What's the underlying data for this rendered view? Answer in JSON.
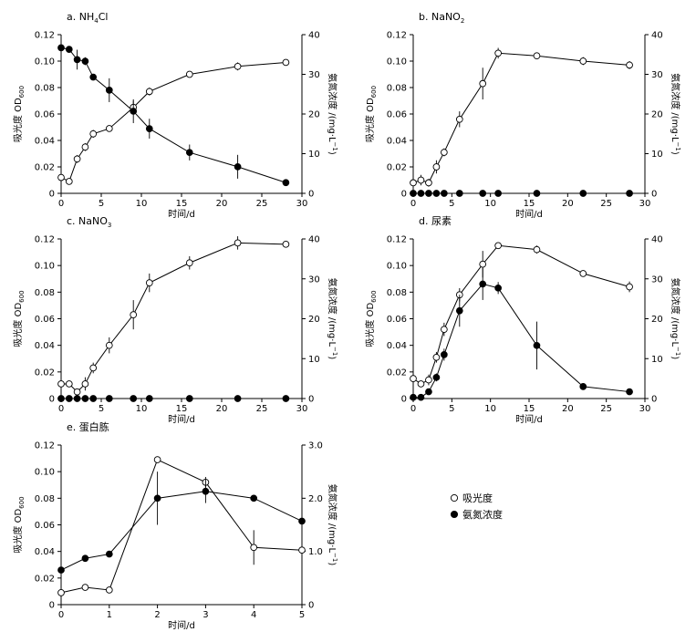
{
  "figure": {
    "legend": {
      "od_label": "吸光度",
      "ammonia_label": "氨氮浓度"
    }
  },
  "chart_data": [
    {
      "type": "line",
      "panel": "a",
      "title_parts": [
        "a. NH",
        "4",
        "Cl"
      ],
      "xlabel": "时间/d",
      "ylabel_parts": [
        "吸光度 OD",
        "600"
      ],
      "y2label_parts": [
        "氨氮浓度 /(mg·L",
        "−1",
        ")"
      ],
      "xlim": [
        0,
        30
      ],
      "ylim": [
        0,
        0.12
      ],
      "y2lim": [
        0,
        40
      ],
      "xticks": [
        "0",
        "5",
        "10",
        "15",
        "20",
        "25",
        "30"
      ],
      "yticks": [
        "0",
        "0.02",
        "0.04",
        "0.06",
        "0.08",
        "0.10",
        "0.12"
      ],
      "y2ticks": [
        "0",
        "10",
        "20",
        "30",
        "40"
      ],
      "series": [
        {
          "name": "吸光度",
          "axis": "left",
          "marker": "open",
          "x": [
            0,
            1,
            2,
            3,
            4,
            6,
            9,
            11,
            16,
            22,
            28
          ],
          "y": [
            0.012,
            0.009,
            0.026,
            0.035,
            0.045,
            0.049,
            0.065,
            0.077,
            0.09,
            0.096,
            0.099
          ],
          "err": [
            0.002,
            0.002,
            0.003,
            0.003,
            0.003,
            0.002,
            0.005,
            0.003,
            0.002,
            0.003,
            0.002
          ]
        },
        {
          "name": "氨氮浓度",
          "axis": "right",
          "marker": "filled",
          "x": [
            0,
            1,
            2,
            3,
            4,
            6,
            9,
            11,
            16,
            22,
            28
          ],
          "y": [
            36.7,
            36.3,
            33.7,
            33.3,
            29.3,
            26.0,
            20.7,
            16.3,
            10.3,
            6.7,
            2.7
          ],
          "err": [
            0.5,
            0.5,
            2.5,
            1.0,
            0.5,
            3.0,
            3.0,
            2.5,
            2.0,
            3.0,
            0.5
          ]
        }
      ]
    },
    {
      "type": "line",
      "panel": "b",
      "title_parts": [
        "b. NaNO",
        "2",
        ""
      ],
      "xlabel": "时间/d",
      "ylabel_parts": [
        "吸光度 OD",
        "600"
      ],
      "y2label_parts": [
        "氨氮浓度 /(mg·L",
        "−1",
        ")"
      ],
      "xlim": [
        0,
        30
      ],
      "ylim": [
        0,
        0.12
      ],
      "y2lim": [
        0,
        40
      ],
      "xticks": [
        "0",
        "5",
        "10",
        "15",
        "20",
        "25",
        "30"
      ],
      "yticks": [
        "0",
        "0.02",
        "0.04",
        "0.06",
        "0.08",
        "0.10",
        "0.12"
      ],
      "y2ticks": [
        "0",
        "10",
        "20",
        "30",
        "40"
      ],
      "series": [
        {
          "name": "吸光度",
          "axis": "left",
          "marker": "open",
          "x": [
            0,
            1,
            2,
            3,
            4,
            6,
            9,
            11,
            16,
            22,
            28
          ],
          "y": [
            0.008,
            0.01,
            0.008,
            0.02,
            0.031,
            0.056,
            0.083,
            0.106,
            0.104,
            0.1,
            0.097
          ],
          "err": [
            0.002,
            0.004,
            0.003,
            0.005,
            0.003,
            0.006,
            0.012,
            0.004,
            0.002,
            0.003,
            0.003
          ]
        },
        {
          "name": "氨氮浓度",
          "axis": "right",
          "marker": "filled",
          "x": [
            0,
            1,
            2,
            3,
            4,
            6,
            9,
            11,
            16,
            22,
            28
          ],
          "y": [
            0,
            0,
            0,
            0,
            0,
            0,
            0,
            0,
            0,
            0,
            0
          ],
          "err": [
            0,
            0,
            0,
            0,
            0,
            0,
            0,
            0,
            0,
            0,
            0
          ]
        }
      ]
    },
    {
      "type": "line",
      "panel": "c",
      "title_parts": [
        "c. NaNO",
        "3",
        ""
      ],
      "xlabel": "时间/d",
      "ylabel_parts": [
        "吸光度 OD",
        "600"
      ],
      "y2label_parts": [
        "氨氮浓度 /(mg·L",
        "−1",
        ")"
      ],
      "xlim": [
        0,
        30
      ],
      "ylim": [
        0,
        0.12
      ],
      "y2lim": [
        0,
        40
      ],
      "xticks": [
        "0",
        "5",
        "10",
        "15",
        "20",
        "25",
        "30"
      ],
      "yticks": [
        "0",
        "0.02",
        "0.04",
        "0.06",
        "0.08",
        "0.10",
        "0.12"
      ],
      "y2ticks": [
        "0",
        "10",
        "20",
        "30",
        "40"
      ],
      "series": [
        {
          "name": "吸光度",
          "axis": "left",
          "marker": "open",
          "x": [
            0,
            1,
            2,
            3,
            4,
            6,
            9,
            11,
            16,
            22,
            28
          ],
          "y": [
            0.011,
            0.011,
            0.005,
            0.011,
            0.023,
            0.04,
            0.063,
            0.087,
            0.102,
            0.117,
            0.116
          ],
          "err": [
            0.001,
            0.002,
            0.002,
            0.005,
            0.004,
            0.006,
            0.011,
            0.007,
            0.005,
            0.005,
            0.001
          ]
        },
        {
          "name": "氨氮浓度",
          "axis": "right",
          "marker": "filled",
          "x": [
            0,
            1,
            2,
            3,
            4,
            6,
            9,
            11,
            16,
            22,
            28
          ],
          "y": [
            0,
            0,
            0,
            0,
            0,
            0,
            0,
            0,
            0,
            0,
            0
          ],
          "err": [
            0,
            0,
            0,
            0,
            0,
            0,
            0,
            0,
            0,
            0,
            0
          ]
        }
      ]
    },
    {
      "type": "line",
      "panel": "d",
      "title_parts": [
        "d. 尿素",
        "",
        ""
      ],
      "xlabel": "时间/d",
      "ylabel_parts": [
        "吸光度 OD",
        "600"
      ],
      "y2label_parts": [
        "氨氮浓度 /(mg·L",
        "−1",
        ")"
      ],
      "xlim": [
        0,
        30
      ],
      "ylim": [
        0,
        0.12
      ],
      "y2lim": [
        0,
        40
      ],
      "xticks": [
        "0",
        "5",
        "10",
        "15",
        "20",
        "25",
        "30"
      ],
      "yticks": [
        "0",
        "0.02",
        "0.04",
        "0.06",
        "0.08",
        "0.10",
        "0.12"
      ],
      "y2ticks": [
        "0",
        "10",
        "20",
        "30",
        "40"
      ],
      "series": [
        {
          "name": "吸光度",
          "axis": "left",
          "marker": "open",
          "x": [
            0,
            1,
            2,
            3,
            4,
            6,
            9,
            11,
            16,
            22,
            28
          ],
          "y": [
            0.015,
            0.011,
            0.014,
            0.031,
            0.052,
            0.078,
            0.101,
            0.115,
            0.112,
            0.094,
            0.084
          ],
          "err": [
            0.001,
            0.002,
            0.004,
            0.004,
            0.005,
            0.005,
            0.01,
            0.001,
            0.003,
            0.002,
            0.004
          ]
        },
        {
          "name": "氨氮浓度",
          "axis": "right",
          "marker": "filled",
          "x": [
            0,
            1,
            2,
            3,
            4,
            6,
            9,
            11,
            16,
            22,
            28
          ],
          "y": [
            0.3,
            0.3,
            1.7,
            5.3,
            11.0,
            22.0,
            28.7,
            27.7,
            13.3,
            3.0,
            1.7
          ],
          "err": [
            0.2,
            0.2,
            0.5,
            1.0,
            1.5,
            4.0,
            4.0,
            1.5,
            6.0,
            0.5,
            0.3
          ]
        }
      ]
    },
    {
      "type": "line",
      "panel": "e",
      "title_parts": [
        "e. 蛋白胨",
        "",
        ""
      ],
      "xlabel": "时间/d",
      "ylabel_parts": [
        "吸光度 OD",
        "600"
      ],
      "y2label_parts": [
        "氨氮浓度 /(mg·L",
        "−1",
        ")"
      ],
      "xlim": [
        0,
        5
      ],
      "ylim": [
        0,
        0.12
      ],
      "y2lim": [
        0,
        3.0
      ],
      "xticks": [
        "0",
        "1",
        "2",
        "3",
        "4",
        "5"
      ],
      "yticks": [
        "0",
        "0.02",
        "0.04",
        "0.06",
        "0.08",
        "0.10",
        "0.12"
      ],
      "y2ticks": [
        "0",
        "1.0",
        "2.0",
        "3.0"
      ],
      "series": [
        {
          "name": "吸光度",
          "axis": "left",
          "marker": "open",
          "x": [
            0,
            0.5,
            1,
            2,
            3,
            4,
            5
          ],
          "y": [
            0.009,
            0.013,
            0.011,
            0.109,
            0.092,
            0.043,
            0.041
          ],
          "err": [
            0.001,
            0.001,
            0.001,
            0.001,
            0.004,
            0.013,
            0.017
          ]
        },
        {
          "name": "氨氮浓度",
          "axis": "right",
          "marker": "filled",
          "x": [
            0,
            0.5,
            1,
            2,
            3,
            4,
            5
          ],
          "y": [
            0.65,
            0.87,
            0.95,
            2.0,
            2.13,
            2.0,
            1.57
          ],
          "err": [
            0.02,
            0.03,
            0.03,
            0.5,
            0.22,
            0.05,
            0.15
          ]
        }
      ]
    }
  ]
}
